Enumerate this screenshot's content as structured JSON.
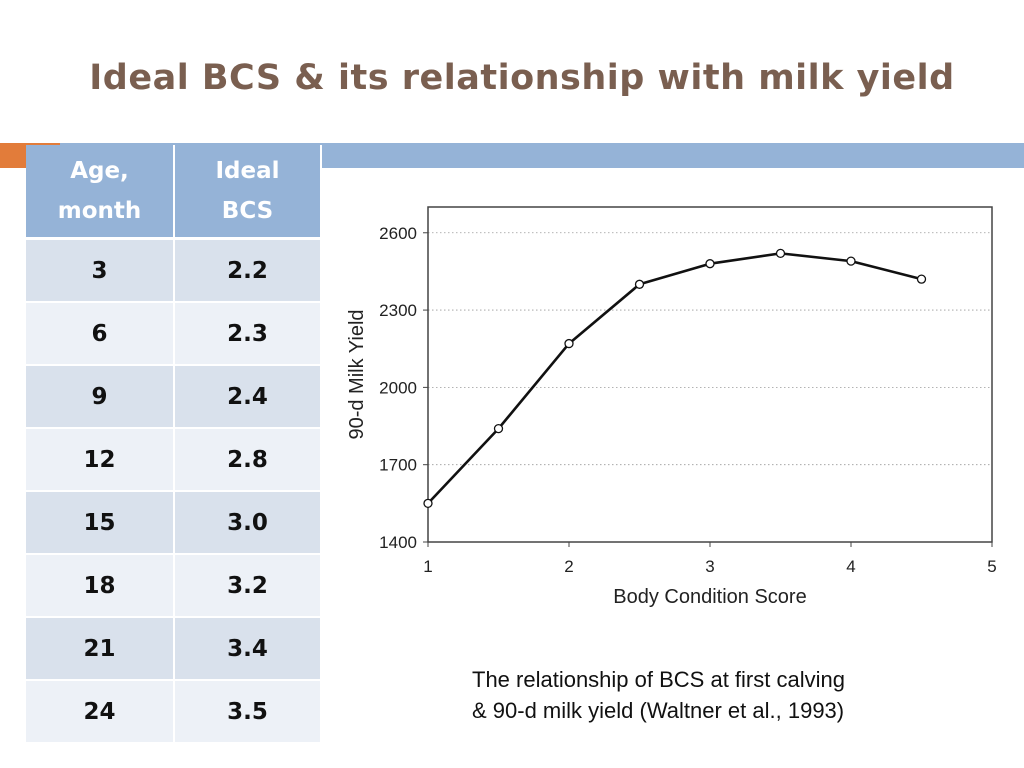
{
  "slide": {
    "title": "Ideal BCS & its relationship with milk yield",
    "caption_line1": "The relationship of BCS at first calving",
    "caption_line2": "& 90-d milk yield (Waltner et al., 1993)",
    "colors": {
      "title": "#7a5f50",
      "header": "#95b3d7",
      "accent": "#e27c3a"
    }
  },
  "table": {
    "headers": [
      [
        "Age,",
        "month"
      ],
      [
        "Ideal",
        "BCS"
      ]
    ],
    "rows": [
      [
        "3",
        "2.2"
      ],
      [
        "6",
        "2.3"
      ],
      [
        "9",
        "2.4"
      ],
      [
        "12",
        "2.8"
      ],
      [
        "15",
        "3.0"
      ],
      [
        "18",
        "3.2"
      ],
      [
        "21",
        "3.4"
      ],
      [
        "24",
        "3.5"
      ]
    ]
  },
  "chart_data": {
    "type": "line",
    "title": "",
    "xlabel": "Body Condition Score",
    "ylabel": "90-d Milk Yield",
    "xlim": [
      1,
      5
    ],
    "ylim": [
      1400,
      2700
    ],
    "xticks": [
      "1",
      "2",
      "3",
      "4",
      "5"
    ],
    "yticks": [
      "1400",
      "1700",
      "2000",
      "2300",
      "2600"
    ],
    "grid": "horizontal dotted",
    "series": [
      {
        "x": [
          1,
          1.5,
          2,
          2.5,
          3,
          3.5,
          4,
          4.5
        ],
        "y": [
          1550,
          1840,
          2170,
          2400,
          2480,
          2520,
          2490,
          2420
        ]
      }
    ]
  }
}
